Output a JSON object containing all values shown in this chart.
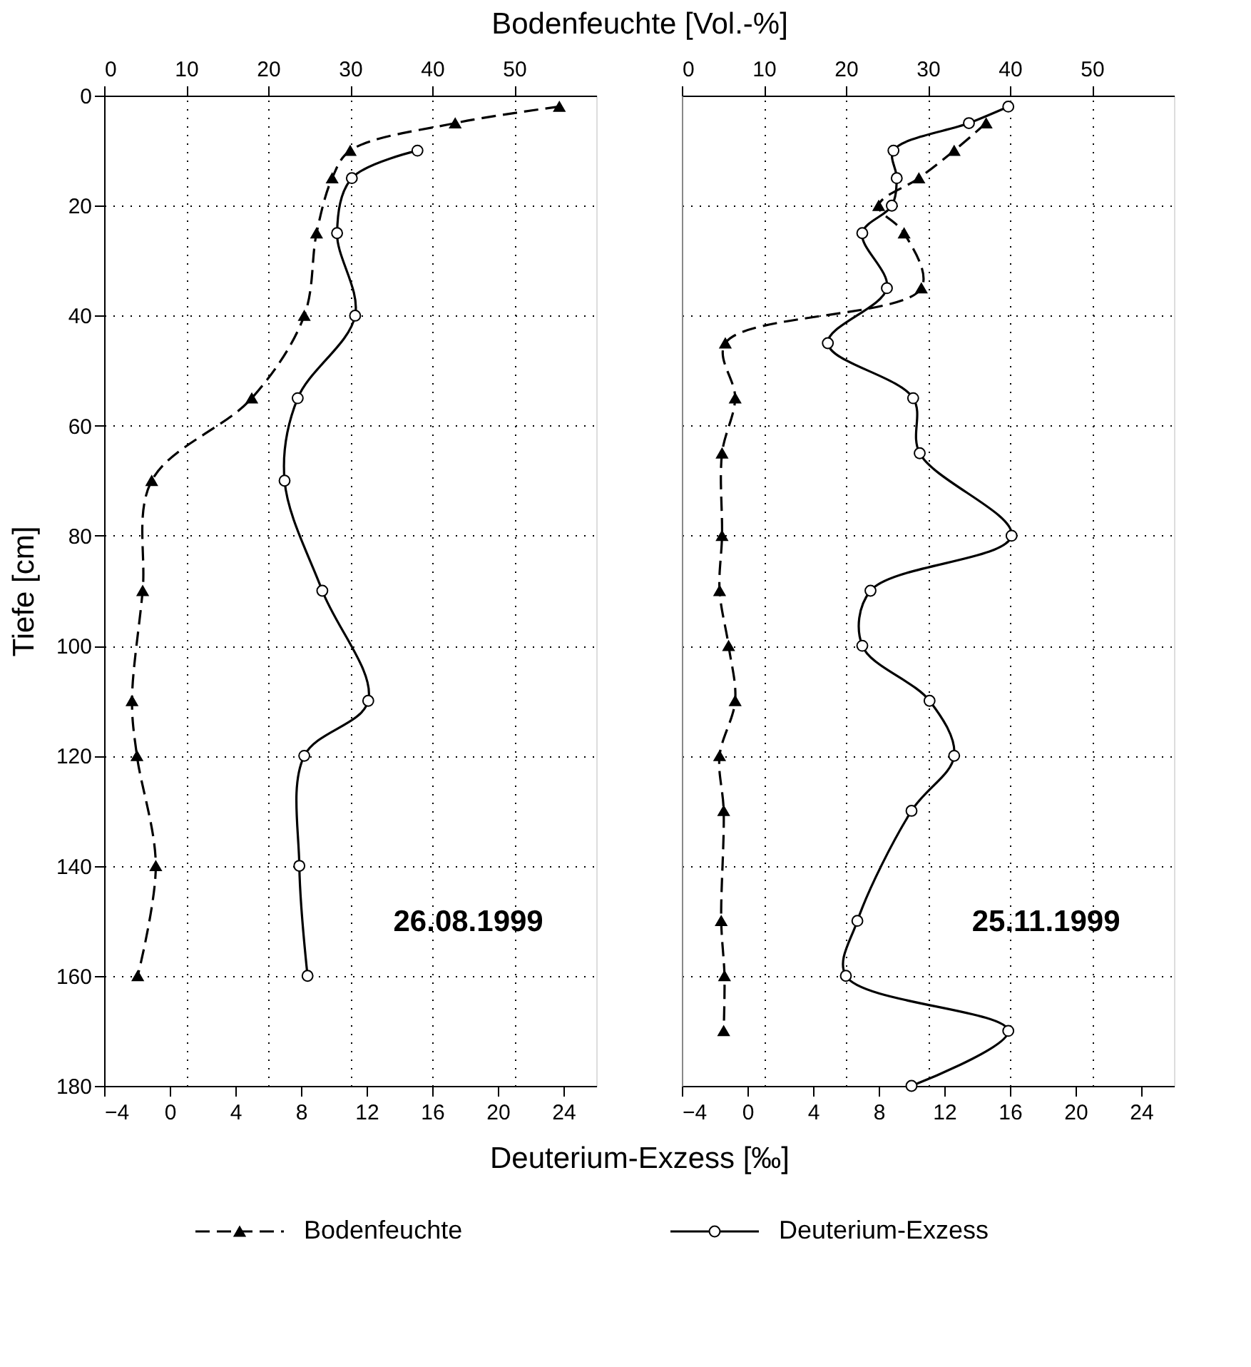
{
  "chart_data": [
    {
      "type": "line",
      "orientation": "horizontal",
      "xlabel": "Deuterium-Exzess [‰]",
      "x2label": "Bodenfeuchte [Vol.-%]",
      "ylabel": "Tiefe [cm]",
      "xlim": [
        -4,
        26
      ],
      "xticks": [
        -4,
        0,
        4,
        8,
        12,
        16,
        20,
        24
      ],
      "x2lim": [
        0,
        60
      ],
      "x2ticks": [
        0,
        10,
        20,
        30,
        40,
        50
      ],
      "ylim": [
        180,
        0
      ],
      "yticks": [
        0,
        20,
        40,
        60,
        80,
        100,
        120,
        140,
        160,
        180
      ],
      "grid": true,
      "legend": "bottom",
      "annotations": [
        "26.08.1999"
      ],
      "series": [
        {
          "name": "Bodenfeuchte",
          "color": "#000000",
          "axis": "x2",
          "marker": "triangle",
          "line_style": "dashed",
          "x": [
            2,
            5,
            10,
            15,
            25,
            40,
            55,
            70,
            90,
            110,
            120,
            140,
            160
          ],
          "values": [
            55.5,
            42.8,
            30.0,
            27.8,
            25.9,
            24.4,
            18.0,
            5.8,
            4.7,
            3.4,
            4.0,
            6.3,
            4.1
          ]
        },
        {
          "name": "Deuterium-Exzess",
          "color": "#000000",
          "marker": "circle",
          "line_style": "solid",
          "x": [
            10,
            15,
            25,
            40,
            55,
            70,
            90,
            110,
            120,
            140,
            160
          ],
          "values": [
            15.1,
            11.1,
            10.2,
            11.3,
            7.8,
            7.0,
            9.3,
            12.1,
            8.2,
            7.9,
            8.4
          ]
        }
      ]
    },
    {
      "type": "line",
      "orientation": "horizontal",
      "xlim": [
        -4,
        26
      ],
      "xticks": [
        -4,
        0,
        4,
        8,
        12,
        16,
        20,
        24
      ],
      "x2lim": [
        0,
        60
      ],
      "x2ticks": [
        0,
        10,
        20,
        30,
        40,
        50
      ],
      "ylim": [
        180,
        0
      ],
      "yticks": [
        0,
        20,
        40,
        60,
        80,
        100,
        120,
        140,
        160,
        180
      ],
      "grid": true,
      "tick_labels": "x",
      "annotations": [
        "25.11.1999"
      ],
      "series": [
        {
          "color": "#000000",
          "axis": "x2",
          "marker": "triangle",
          "line_style": "dashed",
          "x": [
            5,
            10,
            15,
            20,
            25,
            35,
            45,
            55,
            65,
            80,
            90,
            100,
            110,
            120,
            130,
            150,
            160,
            170
          ],
          "values": [
            37.1,
            33.2,
            28.9,
            24.0,
            27.1,
            29.2,
            5.3,
            6.5,
            4.9,
            4.9,
            4.6,
            5.7,
            6.5,
            4.6,
            5.1,
            4.8,
            5.2,
            5.1
          ]
        },
        {
          "color": "#000000",
          "marker": "circle",
          "line_style": "solid",
          "x": [
            2,
            5,
            10,
            15,
            20,
            25,
            35,
            45,
            55,
            65,
            80,
            90,
            100,
            110,
            120,
            130,
            150,
            160,
            170,
            180
          ],
          "values": [
            15.9,
            13.5,
            8.9,
            9.1,
            8.8,
            7.0,
            8.5,
            4.9,
            10.1,
            10.5,
            16.1,
            7.5,
            7.0,
            11.1,
            12.6,
            10.0,
            6.7,
            6.0,
            15.9,
            10.0
          ]
        }
      ]
    }
  ]
}
